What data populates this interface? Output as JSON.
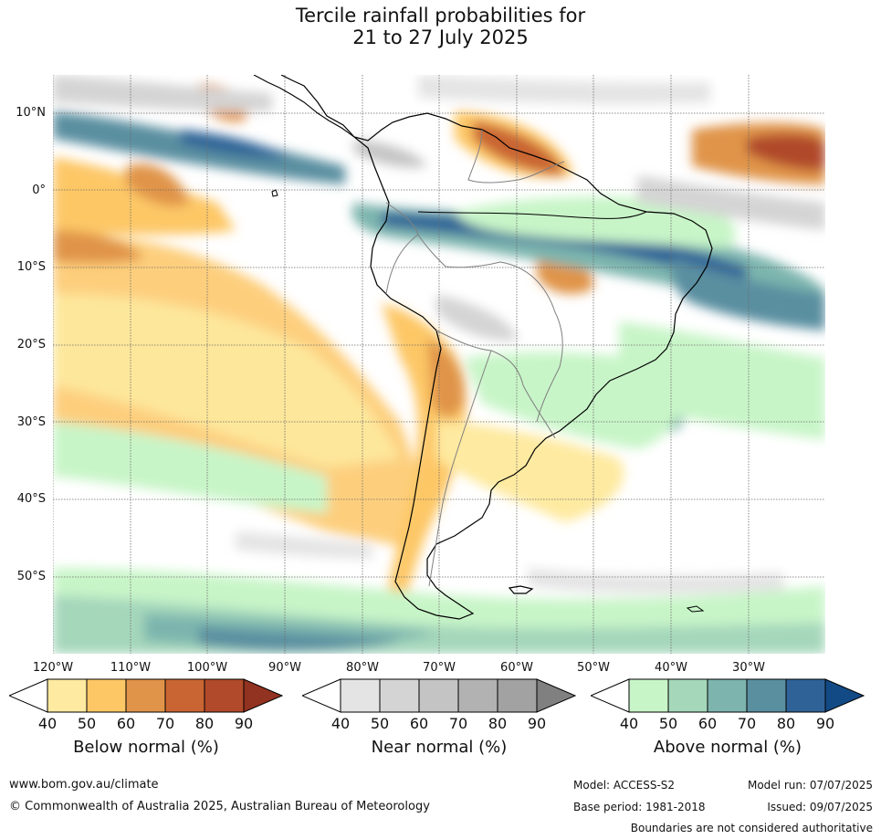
{
  "title_line1": "Tercile rainfall probabilities for",
  "title_line2": "21 to 27 July 2025",
  "lat_labels": [
    "10°N",
    "0°",
    "10°S",
    "20°S",
    "30°S",
    "40°S",
    "50°S"
  ],
  "lon_labels": [
    "120°W",
    "110°W",
    "100°W",
    "90°W",
    "80°W",
    "70°W",
    "60°W",
    "50°W",
    "40°W",
    "30°W"
  ],
  "legends": {
    "below": {
      "title": "Below normal (%)",
      "ticks": [
        "40",
        "50",
        "60",
        "70",
        "80",
        "90"
      ],
      "colors": [
        "#ffffff",
        "#feeaa0",
        "#fdc766",
        "#e0944a",
        "#c96532",
        "#b04a2a",
        "#923220"
      ]
    },
    "near": {
      "title": "Near normal (%)",
      "ticks": [
        "40",
        "50",
        "60",
        "70",
        "80",
        "90"
      ],
      "colors": [
        "#ffffff",
        "#e4e4e4",
        "#d4d4d4",
        "#c4c4c4",
        "#b2b2b2",
        "#a2a2a2",
        "#808080"
      ]
    },
    "above": {
      "title": "Above normal (%)",
      "ticks": [
        "40",
        "50",
        "60",
        "70",
        "80",
        "90"
      ],
      "colors": [
        "#ffffff",
        "#c8f5c8",
        "#a5d7bb",
        "#7db5ae",
        "#5a8fa0",
        "#2f6397",
        "#124a85"
      ]
    }
  },
  "footer": {
    "url": "www.bom.gov.au/climate",
    "copyright": "© Commonwealth of Australia 2025, Australian Bureau of Meteorology",
    "model": "Model: ACCESS-S2",
    "model_run": "Model run: 07/07/2025",
    "base_period": "Base period: 1981-2018",
    "issued": "Issued: 09/07/2025",
    "disclaimer": "Boundaries are not considered authoritative"
  }
}
